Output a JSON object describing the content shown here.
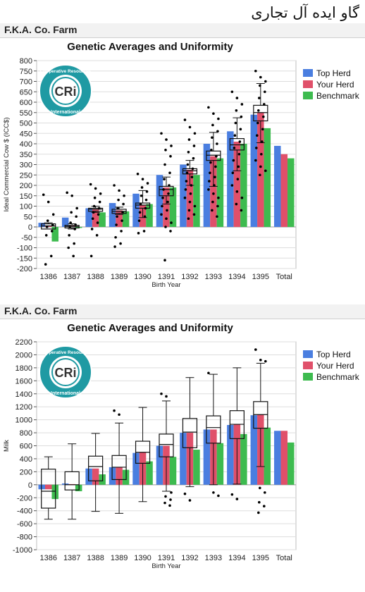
{
  "page": {
    "title": "گاو ایده آل تجاری"
  },
  "logo": {
    "text_top": "Cooperative Resources",
    "text_center": "CRi",
    "text_bottom": "International"
  },
  "colors": {
    "top_herd": "#4a7ee0",
    "your_herd": "#e0506a",
    "benchmark": "#3dbb4f",
    "box": "#111111"
  },
  "chart_data": [
    {
      "type": "bar",
      "farm": "F.K.A. Co. Farm",
      "title": "Genetic Averages and Uniformity",
      "xlabel": "Birth Year",
      "ylabel": "Ideal Commercial Cow $ (ICC$)",
      "ylim": [
        -200,
        800
      ],
      "yticks": [
        -200,
        -150,
        -100,
        -50,
        0,
        50,
        100,
        150,
        200,
        250,
        300,
        350,
        400,
        450,
        500,
        550,
        600,
        650,
        700,
        750,
        800
      ],
      "grid": true,
      "legend_position": "top-right",
      "categories": [
        "1386",
        "1387",
        "1388",
        "1389",
        "1390",
        "1391",
        "1392",
        "1393",
        "1394",
        "1395",
        "Total"
      ],
      "series": [
        {
          "name": "Top Herd",
          "values": [
            20,
            45,
            90,
            115,
            160,
            250,
            300,
            400,
            460,
            540,
            390
          ]
        },
        {
          "name": "Your Herd",
          "values": [
            5,
            5,
            85,
            80,
            105,
            190,
            275,
            340,
            410,
            550,
            350
          ]
        },
        {
          "name": "Benchmark",
          "values": [
            -70,
            -5,
            70,
            75,
            110,
            190,
            250,
            330,
            400,
            475,
            330
          ]
        }
      ],
      "boxes": [
        {
          "q1": -10,
          "median": 5,
          "q3": 15,
          "low": -10,
          "high": 20
        },
        {
          "q1": -5,
          "median": 2,
          "q3": 8,
          "low": -10,
          "high": 15
        },
        {
          "q1": 75,
          "median": 85,
          "q3": 90,
          "low": 70,
          "high": 100
        },
        {
          "q1": 65,
          "median": 75,
          "q3": 85,
          "low": 60,
          "high": 95
        },
        {
          "q1": 90,
          "median": 105,
          "q3": 115,
          "low": 45,
          "high": 175
        },
        {
          "q1": 150,
          "median": 180,
          "q3": 195,
          "low": 110,
          "high": 240
        },
        {
          "q1": 255,
          "median": 270,
          "q3": 280,
          "low": 200,
          "high": 320
        },
        {
          "q1": 320,
          "median": 345,
          "q3": 365,
          "low": 195,
          "high": 455
        },
        {
          "q1": 370,
          "median": 395,
          "q3": 425,
          "low": 270,
          "high": 525
        },
        {
          "q1": 510,
          "median": 550,
          "q3": 585,
          "low": 405,
          "high": 690
        }
      ],
      "points": [
        [
          155,
          120,
          60,
          30,
          10,
          0,
          -20,
          -40,
          -140,
          -180
        ],
        [
          165,
          150,
          90,
          70,
          50,
          20,
          10,
          0,
          -10,
          -40,
          -80,
          -100,
          -140
        ],
        [
          205,
          185,
          160,
          140,
          120,
          100,
          90,
          70,
          60,
          40,
          20,
          -10,
          -40,
          -140
        ],
        [
          200,
          175,
          150,
          130,
          110,
          90,
          70,
          50,
          30,
          10,
          -20,
          -50,
          -80,
          -95
        ],
        [
          255,
          230,
          210,
          190,
          170,
          150,
          130,
          110,
          90,
          70,
          50,
          30,
          -20,
          -30
        ],
        [
          450,
          420,
          390,
          370,
          340,
          300,
          260,
          230,
          200,
          180,
          160,
          140,
          120,
          100,
          80,
          60,
          40,
          20,
          0,
          -20,
          -160
        ],
        [
          515,
          480,
          450,
          420,
          390,
          360,
          330,
          300,
          280,
          260,
          240,
          220,
          200,
          180,
          160,
          140,
          120,
          100,
          80,
          60,
          40
        ],
        [
          575,
          545,
          520,
          490,
          460,
          430,
          400,
          370,
          340,
          310,
          290,
          260,
          240,
          220,
          200,
          180,
          160,
          140,
          120,
          100,
          80,
          50
        ],
        [
          650,
          620,
          590,
          560,
          530,
          500,
          470,
          440,
          410,
          380,
          350,
          320,
          290,
          260,
          230,
          200,
          170,
          140,
          110,
          80
        ],
        [
          750,
          720,
          700,
          680,
          650,
          620,
          590,
          560,
          530,
          500,
          470,
          440,
          410,
          380,
          350,
          320,
          290,
          270,
          250
        ]
      ]
    },
    {
      "type": "bar",
      "farm": "F.K.A. Co. Farm",
      "title": "Genetic Averages and Uniformity",
      "xlabel": "Birth Year",
      "ylabel": "Milk",
      "ylim": [
        -1000,
        2200
      ],
      "yticks": [
        -1000,
        -800,
        -600,
        -400,
        -200,
        0,
        200,
        400,
        600,
        800,
        1000,
        1200,
        1400,
        1600,
        1800,
        2000,
        2200
      ],
      "grid": true,
      "legend_position": "top-right",
      "categories": [
        "1386",
        "1387",
        "1388",
        "1389",
        "1390",
        "1391",
        "1392",
        "1393",
        "1394",
        "1395",
        "Total"
      ],
      "series": [
        {
          "name": "Top Herd",
          "values": [
            -70,
            20,
            250,
            270,
            490,
            600,
            800,
            850,
            920,
            1070,
            830
          ]
        },
        {
          "name": "Your Herd",
          "values": [
            -70,
            10,
            250,
            270,
            500,
            600,
            800,
            850,
            930,
            1080,
            830
          ]
        },
        {
          "name": "Benchmark",
          "values": [
            -220,
            -100,
            160,
            230,
            360,
            430,
            540,
            640,
            780,
            880,
            650
          ]
        }
      ],
      "boxes": [
        {
          "q1": -360,
          "median": -100,
          "q3": 240,
          "low": -530,
          "high": 430
        },
        {
          "q1": -80,
          "median": 0,
          "q3": 200,
          "low": -530,
          "high": 630
        },
        {
          "q1": 60,
          "median": 280,
          "q3": 440,
          "low": -410,
          "high": 790
        },
        {
          "q1": 80,
          "median": 270,
          "q3": 450,
          "low": -440,
          "high": 950
        },
        {
          "q1": 330,
          "median": 500,
          "q3": 670,
          "low": -260,
          "high": 1190
        },
        {
          "q1": 430,
          "median": 620,
          "q3": 780,
          "low": -100,
          "high": 1290
        },
        {
          "q1": 570,
          "median": 810,
          "q3": 1020,
          "low": -30,
          "high": 1650
        },
        {
          "q1": 640,
          "median": 880,
          "q3": 1060,
          "low": 0,
          "high": 1700
        },
        {
          "q1": 710,
          "median": 930,
          "q3": 1140,
          "low": 10,
          "high": 1800
        },
        {
          "q1": 870,
          "median": 1080,
          "q3": 1280,
          "low": 280,
          "high": 1870
        }
      ],
      "points": [
        [],
        [],
        [],
        [
          1140,
          1080
        ],
        [],
        [
          1400,
          1360,
          -120,
          -180,
          -230,
          -280,
          -320
        ],
        [
          -140,
          -240
        ],
        [
          1720,
          -120,
          -170
        ],
        [
          -150,
          -220
        ],
        [
          2080,
          1920,
          1900,
          -50,
          -120,
          -270,
          -330,
          -430
        ]
      ]
    }
  ]
}
